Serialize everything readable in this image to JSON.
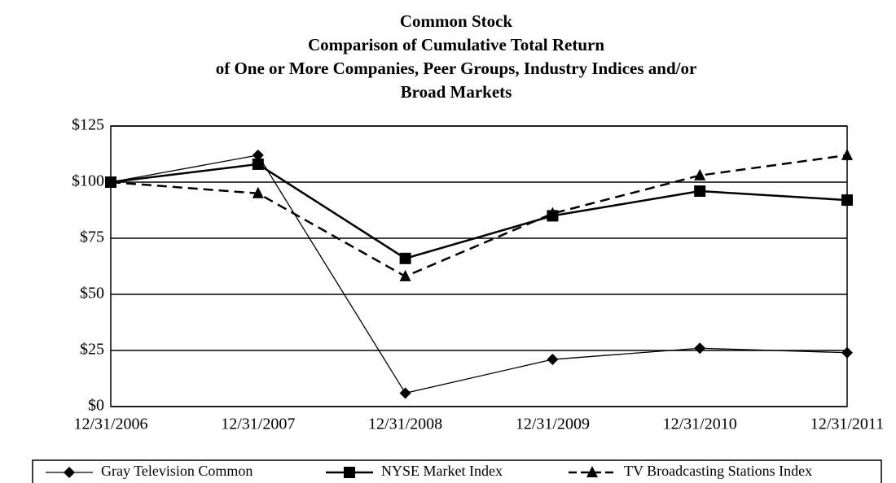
{
  "chart_data": {
    "type": "line",
    "title": [
      "Common Stock",
      "Comparison of Cumulative Total Return",
      "of One or More Companies, Peer Groups, Industry Indices and/or",
      "Broad Markets"
    ],
    "categories": [
      "12/31/2006",
      "12/31/2007",
      "12/31/2008",
      "12/31/2009",
      "12/31/2010",
      "12/31/2011"
    ],
    "series": [
      {
        "name": "Gray Television Common",
        "color": "#000000",
        "marker": "diamond",
        "dashed": false,
        "width": 1.3,
        "values": [
          100,
          112,
          6,
          21,
          26,
          24
        ]
      },
      {
        "name": "NYSE Market Index",
        "color": "#000000",
        "marker": "square",
        "dashed": false,
        "width": 2.5,
        "values": [
          100,
          108,
          66,
          85,
          96,
          92
        ]
      },
      {
        "name": "TV Broadcasting Stations Index",
        "color": "#000000",
        "marker": "triangle",
        "dashed": true,
        "width": 2.5,
        "values": [
          100,
          95,
          58,
          86,
          103,
          112
        ]
      }
    ],
    "ylim": [
      0,
      125
    ],
    "yticks": [
      {
        "value": 0,
        "label": "$0"
      },
      {
        "value": 25,
        "label": "$25"
      },
      {
        "value": 50,
        "label": "$50"
      },
      {
        "value": 75,
        "label": "$75"
      },
      {
        "value": 100,
        "label": "$100"
      },
      {
        "value": 125,
        "label": "$125"
      }
    ],
    "grid": true,
    "legend": "bottom"
  }
}
